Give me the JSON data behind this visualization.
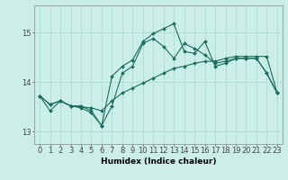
{
  "xlabel": "Humidex (Indice chaleur)",
  "background_color": "#cceee8",
  "grid_color": "#aaddcc",
  "line_color": "#1a6e5e",
  "xlim": [
    -0.5,
    23.5
  ],
  "ylim": [
    12.75,
    15.55
  ],
  "yticks": [
    13,
    14,
    15
  ],
  "xticks": [
    0,
    1,
    2,
    3,
    4,
    5,
    6,
    7,
    8,
    9,
    10,
    11,
    12,
    13,
    14,
    15,
    16,
    17,
    18,
    19,
    20,
    21,
    22,
    23
  ],
  "line1_x": [
    0,
    1,
    2,
    3,
    4,
    5,
    6,
    7,
    8,
    9,
    10,
    11,
    12,
    13,
    14,
    15,
    16,
    17,
    18,
    19,
    20,
    21,
    22,
    23
  ],
  "line1_y": [
    13.72,
    13.42,
    13.62,
    13.52,
    13.52,
    13.42,
    13.12,
    14.12,
    14.32,
    14.45,
    14.82,
    14.98,
    15.08,
    15.18,
    14.62,
    14.58,
    14.82,
    14.32,
    14.38,
    14.48,
    14.48,
    14.48,
    14.18,
    13.78
  ],
  "line2_x": [
    0,
    1,
    2,
    3,
    4,
    5,
    6,
    7,
    8,
    9,
    10,
    11,
    12,
    13,
    14,
    15,
    16,
    17,
    18,
    19,
    20,
    21,
    22,
    23
  ],
  "line2_y": [
    13.72,
    13.55,
    13.62,
    13.52,
    13.5,
    13.48,
    13.42,
    13.62,
    13.78,
    13.88,
    13.98,
    14.08,
    14.18,
    14.28,
    14.32,
    14.38,
    14.42,
    14.42,
    14.48,
    14.52,
    14.52,
    14.52,
    14.52,
    13.78
  ],
  "line3_x": [
    0,
    1,
    2,
    3,
    4,
    5,
    6,
    7,
    8,
    9,
    10,
    11,
    12,
    13,
    14,
    15,
    16,
    17,
    18,
    19,
    20,
    21,
    22,
    23
  ],
  "line3_y": [
    13.72,
    13.55,
    13.62,
    13.52,
    13.48,
    13.38,
    13.12,
    13.52,
    14.18,
    14.32,
    14.78,
    14.88,
    14.72,
    14.48,
    14.78,
    14.68,
    14.55,
    14.38,
    14.42,
    14.48,
    14.48,
    14.48,
    14.18,
    13.78
  ],
  "marker_size": 2.0,
  "linewidth": 0.8,
  "font_size": 6.5,
  "tick_font_size": 6.0
}
